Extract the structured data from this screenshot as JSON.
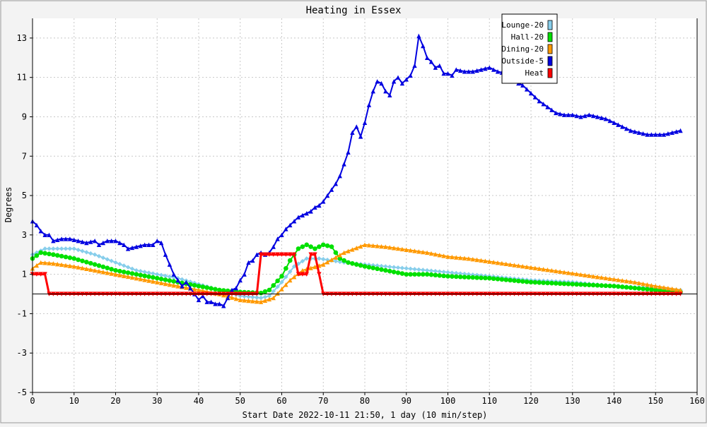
{
  "chart_data": {
    "type": "line",
    "title": "Heating in Essex",
    "xlabel": "Start Date 2022-10-11 21:50, 1 day (10 min/step)",
    "ylabel": "Degrees",
    "xlim": [
      0,
      160
    ],
    "ylim": [
      -5,
      14
    ],
    "x_ticks": [
      0,
      10,
      20,
      30,
      40,
      50,
      60,
      70,
      80,
      90,
      100,
      110,
      120,
      130,
      140,
      150,
      160
    ],
    "y_ticks": [
      -5,
      -3,
      -1,
      1,
      3,
      5,
      7,
      9,
      11,
      13
    ],
    "grid": true,
    "legend_position": "top-right",
    "series": [
      {
        "name": "Lounge-20",
        "color": "#87ceeb",
        "marker": "diamond",
        "points": [
          [
            0,
            2.0
          ],
          [
            3,
            2.3
          ],
          [
            10,
            2.3
          ],
          [
            15,
            2.0
          ],
          [
            20,
            1.6
          ],
          [
            25,
            1.2
          ],
          [
            30,
            1.0
          ],
          [
            35,
            0.8
          ],
          [
            40,
            0.5
          ],
          [
            45,
            0.2
          ],
          [
            50,
            -0.1
          ],
          [
            55,
            -0.2
          ],
          [
            57,
            -0.1
          ],
          [
            60,
            0.6
          ],
          [
            63,
            1.4
          ],
          [
            66,
            1.8
          ],
          [
            69,
            1.8
          ],
          [
            72,
            1.7
          ],
          [
            75,
            1.6
          ],
          [
            80,
            1.5
          ],
          [
            85,
            1.4
          ],
          [
            90,
            1.3
          ],
          [
            95,
            1.2
          ],
          [
            100,
            1.1
          ],
          [
            105,
            1.0
          ],
          [
            110,
            0.9
          ],
          [
            115,
            0.8
          ],
          [
            120,
            0.7
          ],
          [
            125,
            0.65
          ],
          [
            130,
            0.6
          ],
          [
            135,
            0.5
          ],
          [
            140,
            0.4
          ],
          [
            145,
            0.35
          ],
          [
            150,
            0.3
          ],
          [
            156,
            0.2
          ]
        ]
      },
      {
        "name": "Hall-20",
        "color": "#00e000",
        "marker": "circle",
        "points": [
          [
            0,
            1.8
          ],
          [
            2,
            2.1
          ],
          [
            5,
            2.0
          ],
          [
            10,
            1.8
          ],
          [
            15,
            1.5
          ],
          [
            20,
            1.2
          ],
          [
            25,
            1.0
          ],
          [
            30,
            0.8
          ],
          [
            35,
            0.6
          ],
          [
            40,
            0.4
          ],
          [
            45,
            0.2
          ],
          [
            50,
            0.1
          ],
          [
            55,
            0.05
          ],
          [
            57,
            0.2
          ],
          [
            60,
            0.9
          ],
          [
            62,
            1.7
          ],
          [
            64,
            2.3
          ],
          [
            66,
            2.5
          ],
          [
            68,
            2.3
          ],
          [
            70,
            2.5
          ],
          [
            72,
            2.4
          ],
          [
            74,
            1.8
          ],
          [
            76,
            1.6
          ],
          [
            80,
            1.4
          ],
          [
            85,
            1.2
          ],
          [
            90,
            1.0
          ],
          [
            95,
            1.0
          ],
          [
            100,
            0.9
          ],
          [
            105,
            0.85
          ],
          [
            110,
            0.8
          ],
          [
            115,
            0.7
          ],
          [
            120,
            0.6
          ],
          [
            125,
            0.55
          ],
          [
            130,
            0.5
          ],
          [
            135,
            0.45
          ],
          [
            140,
            0.4
          ],
          [
            145,
            0.3
          ],
          [
            150,
            0.2
          ],
          [
            156,
            0.1
          ]
        ]
      },
      {
        "name": "Dining-20",
        "color": "#ff9900",
        "marker": "triangle",
        "points": [
          [
            0,
            1.3
          ],
          [
            2,
            1.6
          ],
          [
            5,
            1.55
          ],
          [
            10,
            1.4
          ],
          [
            15,
            1.2
          ],
          [
            20,
            1.0
          ],
          [
            25,
            0.8
          ],
          [
            30,
            0.6
          ],
          [
            35,
            0.4
          ],
          [
            40,
            0.2
          ],
          [
            45,
            0.0
          ],
          [
            50,
            -0.3
          ],
          [
            55,
            -0.4
          ],
          [
            58,
            -0.2
          ],
          [
            62,
            0.7
          ],
          [
            65,
            1.2
          ],
          [
            70,
            1.5
          ],
          [
            75,
            2.1
          ],
          [
            80,
            2.5
          ],
          [
            85,
            2.4
          ],
          [
            90,
            2.25
          ],
          [
            95,
            2.1
          ],
          [
            100,
            1.9
          ],
          [
            105,
            1.8
          ],
          [
            110,
            1.65
          ],
          [
            115,
            1.5
          ],
          [
            120,
            1.35
          ],
          [
            125,
            1.2
          ],
          [
            130,
            1.05
          ],
          [
            135,
            0.9
          ],
          [
            140,
            0.75
          ],
          [
            145,
            0.6
          ],
          [
            150,
            0.4
          ],
          [
            156,
            0.2
          ]
        ]
      },
      {
        "name": "Outside-5",
        "color": "#0000e0",
        "marker": "triangle",
        "points": [
          [
            0,
            3.7
          ],
          [
            1,
            3.5
          ],
          [
            2,
            3.2
          ],
          [
            3,
            3.0
          ],
          [
            4,
            3.0
          ],
          [
            5,
            2.7
          ],
          [
            7,
            2.8
          ],
          [
            9,
            2.8
          ],
          [
            11,
            2.7
          ],
          [
            13,
            2.6
          ],
          [
            15,
            2.7
          ],
          [
            16,
            2.5
          ],
          [
            18,
            2.7
          ],
          [
            20,
            2.7
          ],
          [
            22,
            2.5
          ],
          [
            23,
            2.3
          ],
          [
            25,
            2.4
          ],
          [
            27,
            2.5
          ],
          [
            29,
            2.5
          ],
          [
            30,
            2.7
          ],
          [
            31,
            2.6
          ],
          [
            32,
            2.0
          ],
          [
            33,
            1.5
          ],
          [
            34,
            1.0
          ],
          [
            35,
            0.7
          ],
          [
            36,
            0.4
          ],
          [
            37,
            0.6
          ],
          [
            38,
            0.3
          ],
          [
            39,
            0.0
          ],
          [
            40,
            -0.3
          ],
          [
            41,
            -0.1
          ],
          [
            42,
            -0.4
          ],
          [
            43,
            -0.4
          ],
          [
            44,
            -0.5
          ],
          [
            45,
            -0.5
          ],
          [
            46,
            -0.6
          ],
          [
            47,
            -0.2
          ],
          [
            48,
            0.2
          ],
          [
            49,
            0.3
          ],
          [
            50,
            0.7
          ],
          [
            51,
            1.0
          ],
          [
            52,
            1.6
          ],
          [
            53,
            1.7
          ],
          [
            54,
            2.0
          ],
          [
            55,
            2.1
          ],
          [
            56,
            2.0
          ],
          [
            57,
            2.1
          ],
          [
            58,
            2.4
          ],
          [
            59,
            2.8
          ],
          [
            60,
            3.0
          ],
          [
            61,
            3.3
          ],
          [
            62,
            3.5
          ],
          [
            63,
            3.7
          ],
          [
            64,
            3.9
          ],
          [
            65,
            4.0
          ],
          [
            66,
            4.1
          ],
          [
            67,
            4.2
          ],
          [
            68,
            4.4
          ],
          [
            69,
            4.5
          ],
          [
            70,
            4.7
          ],
          [
            71,
            5.0
          ],
          [
            72,
            5.3
          ],
          [
            73,
            5.6
          ],
          [
            74,
            6.0
          ],
          [
            75,
            6.6
          ],
          [
            76,
            7.2
          ],
          [
            77,
            8.2
          ],
          [
            78,
            8.5
          ],
          [
            79,
            8.0
          ],
          [
            80,
            8.7
          ],
          [
            81,
            9.6
          ],
          [
            82,
            10.3
          ],
          [
            83,
            10.8
          ],
          [
            84,
            10.7
          ],
          [
            85,
            10.3
          ],
          [
            86,
            10.1
          ],
          [
            87,
            10.8
          ],
          [
            88,
            11.0
          ],
          [
            89,
            10.7
          ],
          [
            90,
            10.9
          ],
          [
            91,
            11.1
          ],
          [
            92,
            11.6
          ],
          [
            93,
            13.1
          ],
          [
            94,
            12.6
          ],
          [
            95,
            12.0
          ],
          [
            96,
            11.8
          ],
          [
            97,
            11.5
          ],
          [
            98,
            11.6
          ],
          [
            99,
            11.2
          ],
          [
            100,
            11.2
          ],
          [
            101,
            11.1
          ],
          [
            102,
            11.4
          ],
          [
            104,
            11.3
          ],
          [
            106,
            11.3
          ],
          [
            108,
            11.4
          ],
          [
            110,
            11.5
          ],
          [
            112,
            11.3
          ],
          [
            114,
            11.2
          ],
          [
            116,
            10.8
          ],
          [
            118,
            10.6
          ],
          [
            120,
            10.2
          ],
          [
            122,
            9.8
          ],
          [
            124,
            9.5
          ],
          [
            126,
            9.2
          ],
          [
            128,
            9.1
          ],
          [
            130,
            9.1
          ],
          [
            132,
            9.0
          ],
          [
            134,
            9.1
          ],
          [
            136,
            9.0
          ],
          [
            138,
            8.9
          ],
          [
            140,
            8.7
          ],
          [
            142,
            8.5
          ],
          [
            144,
            8.3
          ],
          [
            146,
            8.2
          ],
          [
            148,
            8.1
          ],
          [
            150,
            8.1
          ],
          [
            152,
            8.1
          ],
          [
            154,
            8.2
          ],
          [
            156,
            8.3
          ]
        ]
      },
      {
        "name": "Heat",
        "color": "#ff0000",
        "marker": "triangle-down",
        "points": [
          [
            0,
            1.0
          ],
          [
            3,
            1.0
          ],
          [
            4,
            0.0
          ],
          [
            54,
            0.0
          ],
          [
            55,
            2.0
          ],
          [
            63,
            2.0
          ],
          [
            64,
            1.0
          ],
          [
            66,
            1.0
          ],
          [
            67,
            2.0
          ],
          [
            68,
            2.0
          ],
          [
            69,
            1.0
          ],
          [
            70,
            0.0
          ],
          [
            156,
            0.0
          ]
        ]
      }
    ]
  }
}
